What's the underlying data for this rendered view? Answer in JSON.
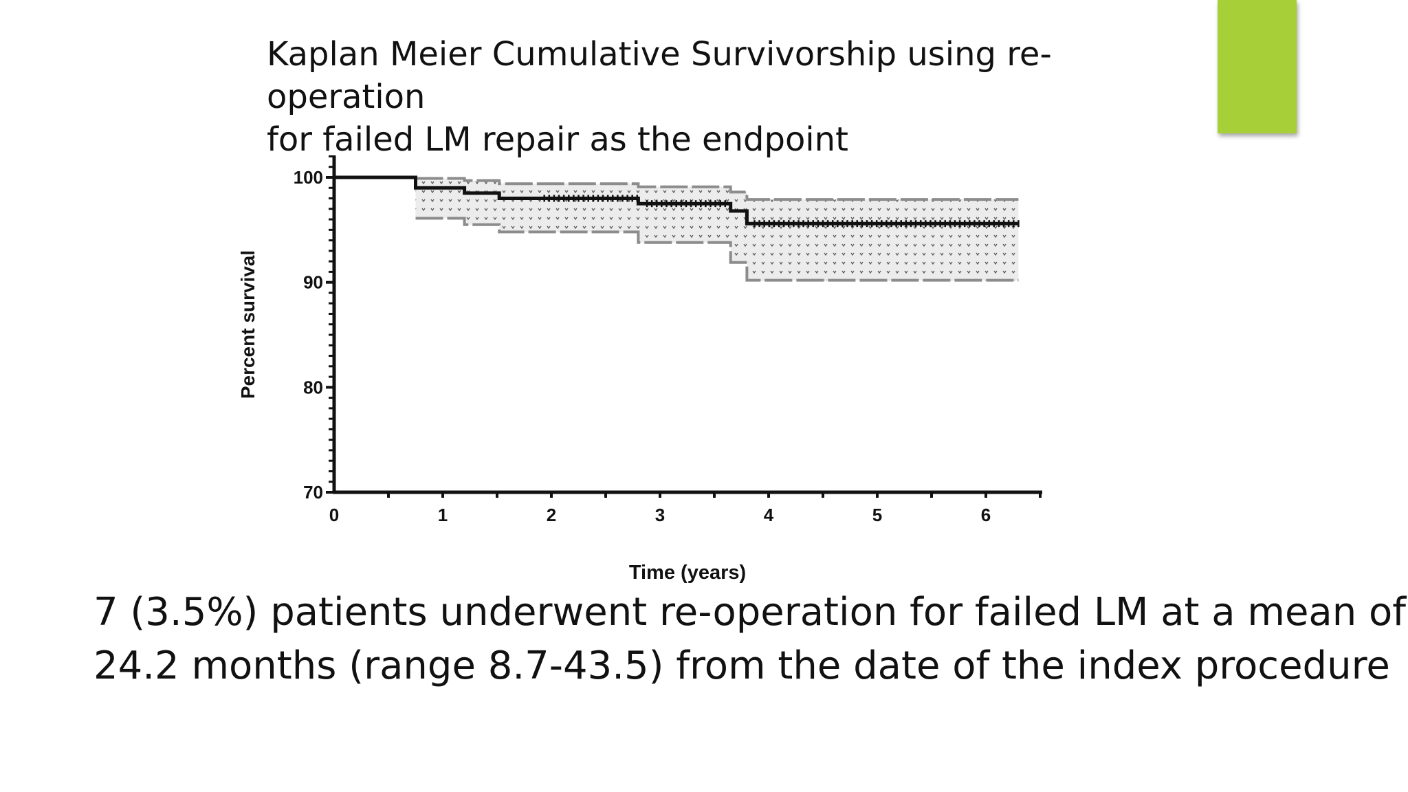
{
  "slide": {
    "title_lines": [
      "Kaplan Meier Cumulative Survivorship using re-operation",
      "for failed LM repair as the endpoint"
    ],
    "body_lines": [
      "7 (3.5%) patients underwent re-operation for failed LM at a mean of",
      "24.2 months (range 8.7-43.5) from the date of the index procedure"
    ],
    "accent_color": "#a6cf38"
  },
  "chart_data": {
    "type": "line",
    "xlabel": "Time (years)",
    "ylabel": "Percent survival",
    "xlim": [
      0,
      6.5
    ],
    "ylim": [
      70,
      102
    ],
    "x_ticks": [
      0,
      1,
      2,
      3,
      4,
      5,
      6
    ],
    "y_ticks": [
      70,
      80,
      90,
      100
    ],
    "grid": false,
    "series": [
      {
        "role": "survival",
        "step": true,
        "points": [
          [
            0,
            100
          ],
          [
            0.75,
            100
          ],
          [
            0.75,
            99.0
          ],
          [
            1.2,
            99.0
          ],
          [
            1.2,
            98.5
          ],
          [
            1.52,
            98.5
          ],
          [
            1.52,
            98.0
          ],
          [
            2.8,
            98.0
          ],
          [
            2.8,
            97.5
          ],
          [
            3.65,
            97.5
          ],
          [
            3.65,
            96.8
          ],
          [
            3.8,
            96.8
          ],
          [
            3.8,
            95.6
          ],
          [
            6.3,
            95.6
          ]
        ]
      },
      {
        "role": "upper_ci",
        "step": true,
        "points": [
          [
            0.75,
            99.9
          ],
          [
            1.2,
            99.9
          ],
          [
            1.2,
            99.7
          ],
          [
            1.52,
            99.7
          ],
          [
            1.52,
            99.4
          ],
          [
            2.8,
            99.4
          ],
          [
            2.8,
            99.1
          ],
          [
            3.65,
            99.1
          ],
          [
            3.65,
            98.6
          ],
          [
            3.8,
            98.6
          ],
          [
            3.8,
            97.9
          ],
          [
            6.3,
            97.9
          ]
        ]
      },
      {
        "role": "lower_ci",
        "step": true,
        "points": [
          [
            0.75,
            96.1
          ],
          [
            1.2,
            96.1
          ],
          [
            1.2,
            95.5
          ],
          [
            1.52,
            95.5
          ],
          [
            1.52,
            94.8
          ],
          [
            2.8,
            94.8
          ],
          [
            2.8,
            93.8
          ],
          [
            3.65,
            93.8
          ],
          [
            3.65,
            91.9
          ],
          [
            3.8,
            91.9
          ],
          [
            3.8,
            90.2
          ],
          [
            6.3,
            90.2
          ]
        ]
      }
    ],
    "colors": {
      "line": "#111111",
      "ci_line": "#8c8c8c",
      "ci_fill": "#e6e6e6"
    }
  }
}
